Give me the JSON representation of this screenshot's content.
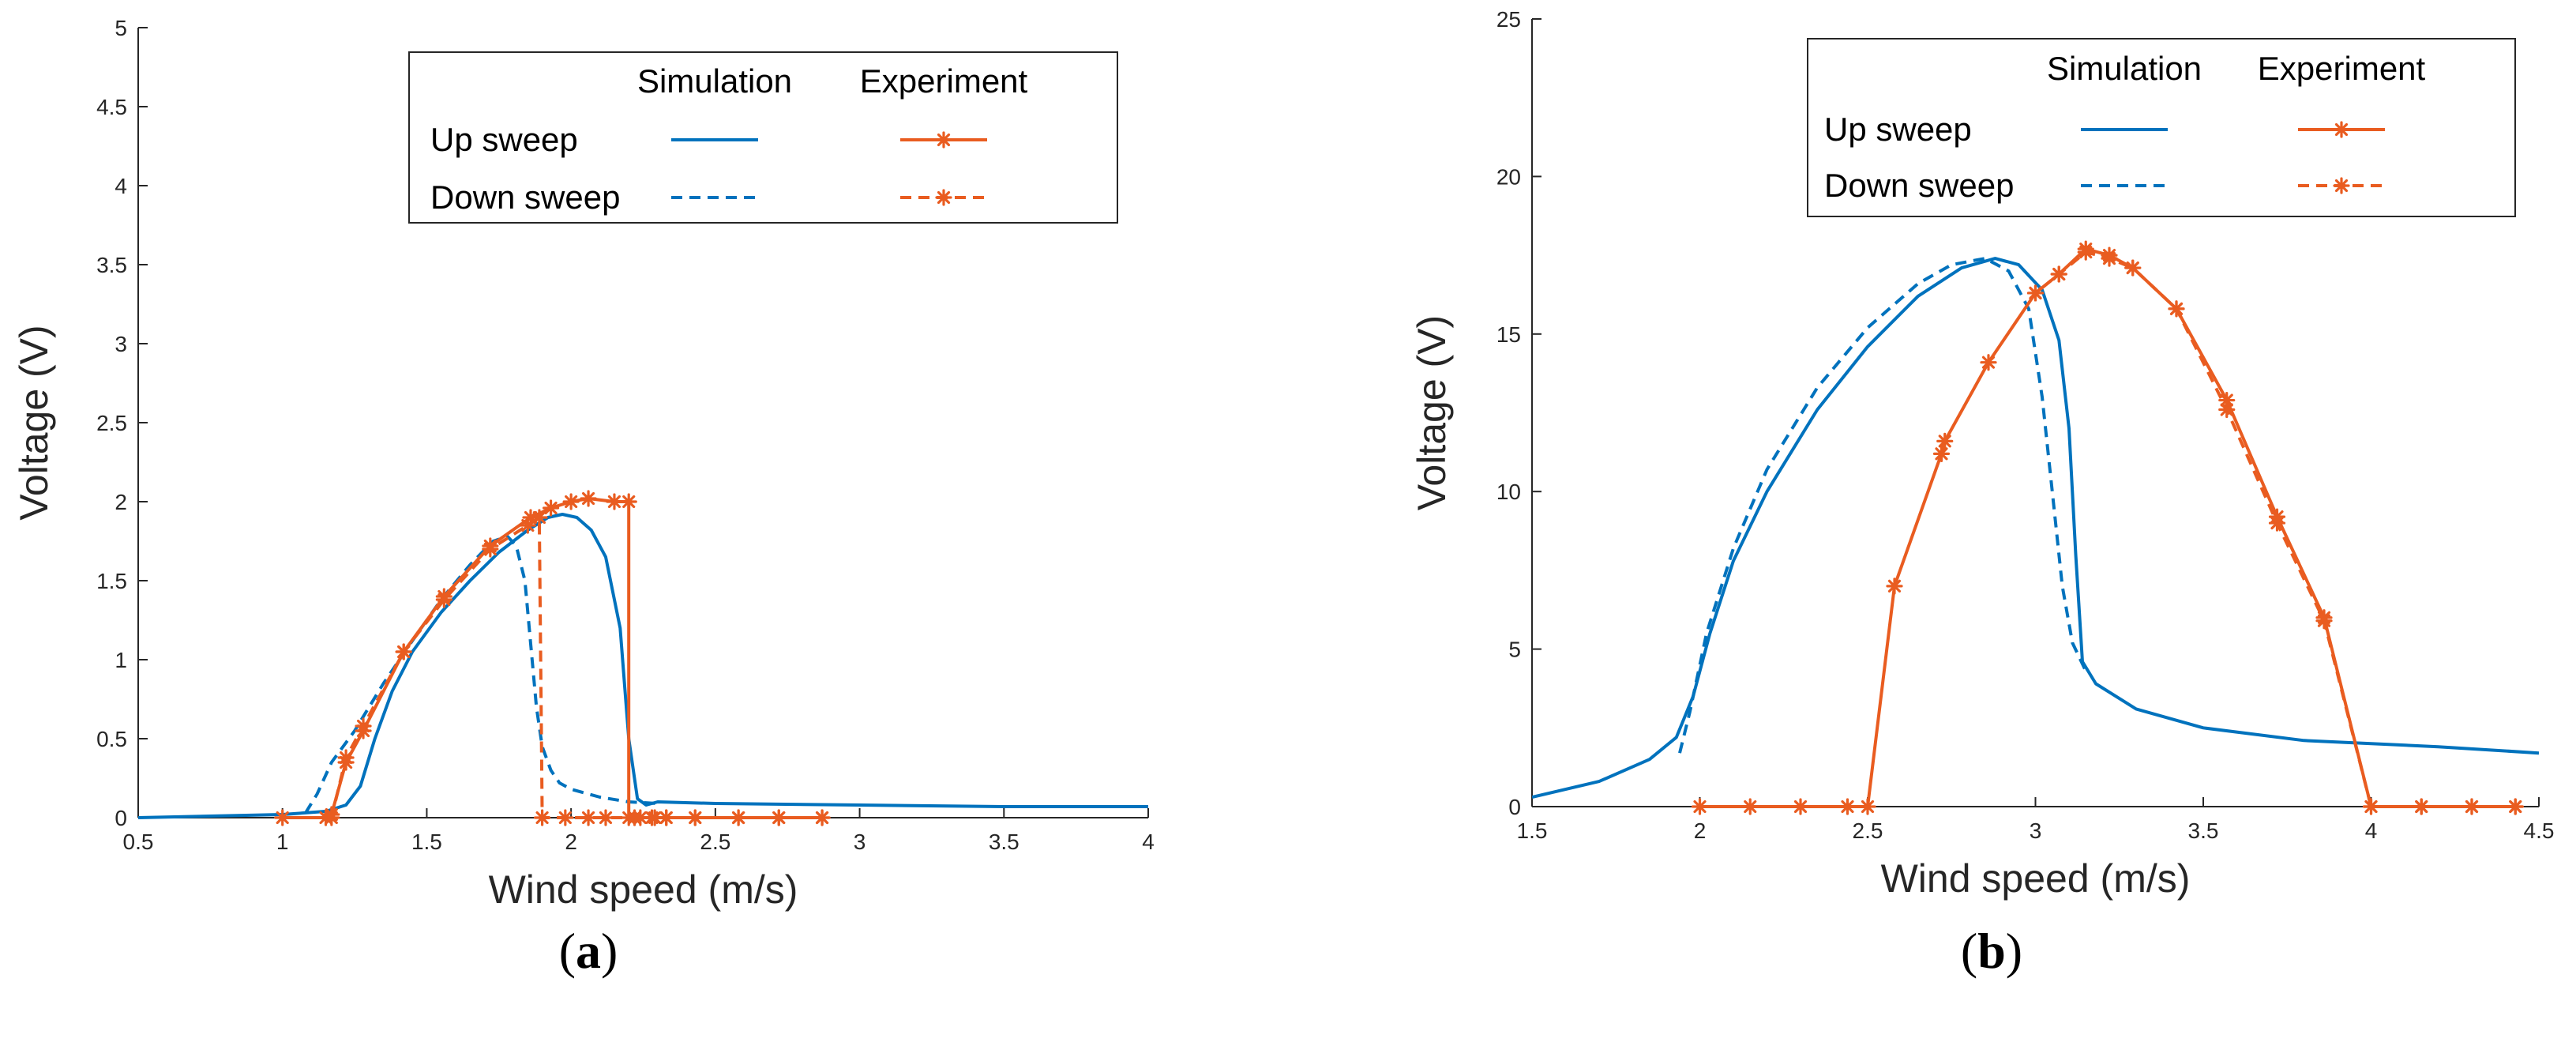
{
  "chart_data": [
    {
      "type": "line",
      "panel_label": "a",
      "xlabel": "Wind speed (m/s)",
      "ylabel": "Voltage (V)",
      "xlim": [
        0.5,
        4
      ],
      "ylim": [
        0,
        5
      ],
      "xticks": [
        0.5,
        1,
        1.5,
        2,
        2.5,
        3,
        3.5,
        4
      ],
      "xtick_labels": [
        "0.5",
        "1",
        "1.5",
        "2",
        "2.5",
        "3",
        "3.5",
        "4"
      ],
      "yticks": [
        0,
        0.5,
        1,
        1.5,
        2,
        2.5,
        3,
        3.5,
        4,
        4.5,
        5
      ],
      "ytick_labels": [
        "0",
        "0.5",
        "1",
        "1.5",
        "2",
        "2.5",
        "3",
        "3.5",
        "4",
        "4.5",
        "5"
      ],
      "grid": false,
      "legend": {
        "position": "top-right",
        "column_headers": [
          "Simulation",
          "Experiment"
        ],
        "row_labels": [
          "Up sweep",
          "Down sweep"
        ]
      },
      "series": [
        {
          "name": "Simulation Up sweep",
          "source": "simulation",
          "sweep": "up",
          "color": "#0072BD",
          "dash": "solid",
          "markers": false,
          "x": [
            0.5,
            1.0,
            1.15,
            1.22,
            1.27,
            1.32,
            1.38,
            1.45,
            1.55,
            1.65,
            1.75,
            1.85,
            1.92,
            1.97,
            2.02,
            2.07,
            2.12,
            2.17,
            2.2,
            2.23,
            2.26,
            2.3,
            2.5,
            3.0,
            3.5,
            4.0
          ],
          "y": [
            0.0,
            0.02,
            0.04,
            0.08,
            0.2,
            0.5,
            0.8,
            1.05,
            1.3,
            1.5,
            1.68,
            1.82,
            1.9,
            1.92,
            1.9,
            1.82,
            1.65,
            1.2,
            0.5,
            0.12,
            0.08,
            0.1,
            0.09,
            0.08,
            0.07,
            0.07
          ]
        },
        {
          "name": "Simulation Down sweep",
          "source": "simulation",
          "sweep": "down",
          "color": "#0072BD",
          "dash": "dashed",
          "markers": false,
          "x": [
            1.08,
            1.12,
            1.17,
            1.25,
            1.35,
            1.45,
            1.55,
            1.65,
            1.73,
            1.78,
            1.81,
            1.84,
            1.86,
            1.88,
            1.9,
            1.93,
            1.96,
            2.0,
            2.1,
            2.2,
            2.3
          ],
          "y": [
            0.03,
            0.15,
            0.35,
            0.55,
            0.85,
            1.12,
            1.38,
            1.6,
            1.75,
            1.78,
            1.72,
            1.5,
            1.1,
            0.7,
            0.45,
            0.3,
            0.22,
            0.18,
            0.13,
            0.1,
            0.09
          ]
        },
        {
          "name": "Experiment Up sweep",
          "source": "experiment",
          "sweep": "up",
          "color": "#E95C20",
          "dash": "solid",
          "markers": true,
          "x": [
            1.0,
            1.15,
            1.17,
            1.22,
            1.28,
            1.42,
            1.56,
            1.72,
            1.86,
            1.93,
            2.0,
            2.06,
            2.15,
            2.2,
            2.2,
            2.24,
            2.29,
            2.33,
            2.43,
            2.58,
            2.72,
            2.87
          ],
          "y": [
            0.0,
            0.0,
            0.02,
            0.35,
            0.55,
            1.05,
            1.4,
            1.72,
            1.9,
            1.96,
            2.0,
            2.02,
            2.0,
            2.0,
            0.0,
            0.0,
            0.0,
            0.0,
            0.0,
            0.0,
            0.0,
            0.0
          ]
        },
        {
          "name": "Experiment Down sweep",
          "source": "experiment",
          "sweep": "down",
          "color": "#E95C20",
          "dash": "dashed",
          "markers": true,
          "x": [
            2.87,
            2.72,
            2.58,
            2.43,
            2.33,
            2.28,
            2.22,
            2.12,
            2.06,
            1.98,
            1.9,
            1.89,
            1.85,
            1.72,
            1.56,
            1.42,
            1.28,
            1.22,
            1.17
          ],
          "y": [
            0.0,
            0.0,
            0.0,
            0.0,
            0.0,
            0.0,
            0.0,
            0.0,
            0.0,
            0.0,
            0.0,
            1.9,
            1.85,
            1.7,
            1.38,
            1.05,
            0.58,
            0.38,
            0.0
          ]
        }
      ]
    },
    {
      "type": "line",
      "panel_label": "b",
      "xlabel": "Wind speed (m/s)",
      "ylabel": "Voltage (V)",
      "xlim": [
        1.5,
        4.5
      ],
      "ylim": [
        0,
        25
      ],
      "xticks": [
        1.5,
        2,
        2.5,
        3,
        3.5,
        4,
        4.5
      ],
      "xtick_labels": [
        "1.5",
        "2",
        "2.5",
        "3",
        "3.5",
        "4",
        "4.5"
      ],
      "yticks": [
        0,
        5,
        10,
        15,
        20,
        25
      ],
      "ytick_labels": [
        "0",
        "5",
        "10",
        "15",
        "20",
        "25"
      ],
      "grid": false,
      "legend": {
        "position": "top-right",
        "column_headers": [
          "Simulation",
          "Experiment"
        ],
        "row_labels": [
          "Up sweep",
          "Down sweep"
        ]
      },
      "series": [
        {
          "name": "Simulation Up sweep",
          "source": "simulation",
          "sweep": "up",
          "color": "#0072BD",
          "dash": "solid",
          "markers": false,
          "x": [
            1.5,
            1.7,
            1.85,
            1.93,
            1.98,
            2.03,
            2.1,
            2.2,
            2.35,
            2.5,
            2.65,
            2.78,
            2.88,
            2.95,
            3.02,
            3.07,
            3.1,
            3.12,
            3.14,
            3.18,
            3.3,
            3.5,
            3.8,
            4.2,
            4.5
          ],
          "y": [
            0.3,
            0.8,
            1.5,
            2.2,
            3.5,
            5.5,
            7.8,
            10.0,
            12.6,
            14.6,
            16.2,
            17.1,
            17.4,
            17.2,
            16.4,
            14.8,
            12.0,
            8.0,
            4.6,
            3.9,
            3.1,
            2.5,
            2.1,
            1.9,
            1.7
          ]
        },
        {
          "name": "Simulation Down sweep",
          "source": "simulation",
          "sweep": "down",
          "color": "#0072BD",
          "dash": "dashed",
          "markers": false,
          "x": [
            1.94,
            1.97,
            2.02,
            2.1,
            2.2,
            2.35,
            2.5,
            2.65,
            2.75,
            2.85,
            2.92,
            2.98,
            3.02,
            3.05,
            3.08,
            3.11,
            3.15
          ],
          "y": [
            1.7,
            3.0,
            5.5,
            8.2,
            10.7,
            13.3,
            15.2,
            16.6,
            17.2,
            17.4,
            17.0,
            15.8,
            13.0,
            10.0,
            7.0,
            5.2,
            4.3
          ]
        },
        {
          "name": "Experiment Up sweep",
          "source": "experiment",
          "sweep": "up",
          "color": "#E95C20",
          "dash": "solid",
          "markers": true,
          "x": [
            2.0,
            2.15,
            2.3,
            2.44,
            2.5,
            2.58,
            2.72,
            2.73,
            2.86,
            3.0,
            3.07,
            3.15,
            3.22,
            3.29,
            3.42,
            3.57,
            3.72,
            3.86,
            4.0,
            4.15,
            4.3,
            4.43
          ],
          "y": [
            0.0,
            0.0,
            0.0,
            0.0,
            0.0,
            7.0,
            11.2,
            11.6,
            14.1,
            16.3,
            16.9,
            17.7,
            17.5,
            17.1,
            15.8,
            12.9,
            9.2,
            6.0,
            0.0,
            0.0,
            0.0,
            0.0
          ]
        },
        {
          "name": "Experiment Down sweep",
          "source": "experiment",
          "sweep": "down",
          "color": "#E95C20",
          "dash": "dashed",
          "markers": true,
          "x": [
            4.43,
            4.3,
            4.15,
            4.0,
            3.86,
            3.72,
            3.57,
            3.42,
            3.29,
            3.22,
            3.15,
            3.07,
            3.0
          ],
          "y": [
            0.0,
            0.0,
            0.0,
            0.0,
            5.9,
            9.0,
            12.6,
            15.8,
            17.1,
            17.4,
            17.6,
            16.9,
            16.3
          ]
        }
      ]
    }
  ]
}
